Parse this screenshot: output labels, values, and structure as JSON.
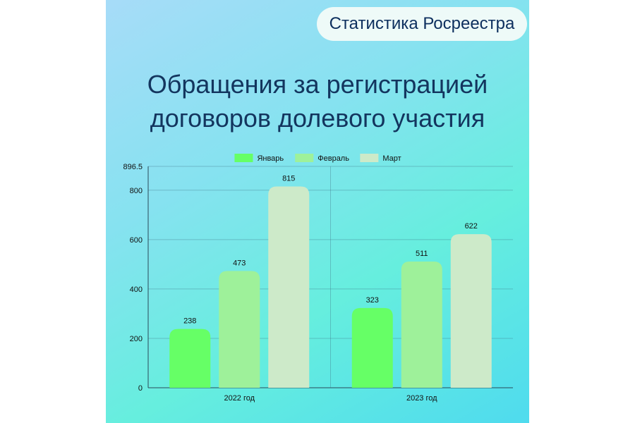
{
  "badge": {
    "text": "Статистика Росреестра"
  },
  "header": {
    "title_line1": "Обращения за регистрацией",
    "title_line2": "договоров долевого участия"
  },
  "colors": {
    "Январь": "#66ff66",
    "Февраль": "#9ef19a",
    "Март": "#cdeac9"
  },
  "chart_data": {
    "type": "bar",
    "title": "Обращения за регистрацией договоров долевого участия",
    "xlabel": "",
    "ylabel": "",
    "categories": [
      "2022 год",
      "2023 год"
    ],
    "series": [
      {
        "name": "Январь",
        "values": [
          238,
          323
        ]
      },
      {
        "name": "Февраль",
        "values": [
          473,
          511
        ]
      },
      {
        "name": "Март",
        "values": [
          815,
          622
        ]
      }
    ],
    "ylim": [
      0,
      896.5
    ],
    "yticks": [
      "0",
      "200",
      "400",
      "600",
      "800",
      "896.5"
    ],
    "grid": true,
    "legend": "top"
  }
}
